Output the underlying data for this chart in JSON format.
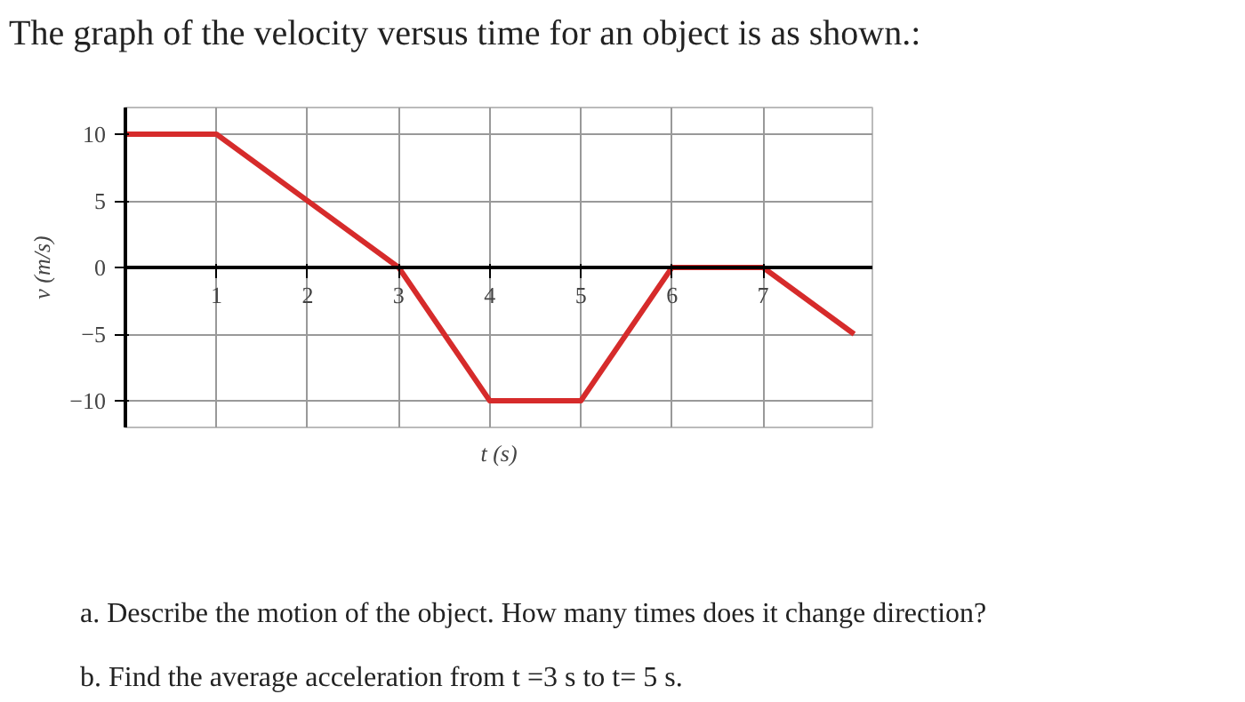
{
  "chart_data": {
    "type": "line",
    "title": "The graph of the velocity versus time for an object is as shown.:",
    "xlabel": "t (s)",
    "ylabel": "v (m/s)",
    "x": [
      0,
      1,
      3,
      4,
      5,
      6,
      7,
      8
    ],
    "series": [
      {
        "color": "#d62b2b",
        "values": [
          10,
          10,
          0,
          -10,
          -10,
          0,
          0,
          -5
        ]
      }
    ],
    "xlim": [
      0,
      8.2
    ],
    "ylim": [
      -12,
      12
    ],
    "xticks": [
      1,
      2,
      3,
      4,
      5,
      6,
      7
    ],
    "yticks": [
      -10,
      -5,
      0,
      5,
      10
    ],
    "grid": true,
    "marker": "none",
    "line_style": "solid",
    "annotations": [
      "a. Describe the motion of the object. How many times does it change direction?",
      "b. Find the average acceleration from t =3 s to t= 5 s."
    ]
  }
}
